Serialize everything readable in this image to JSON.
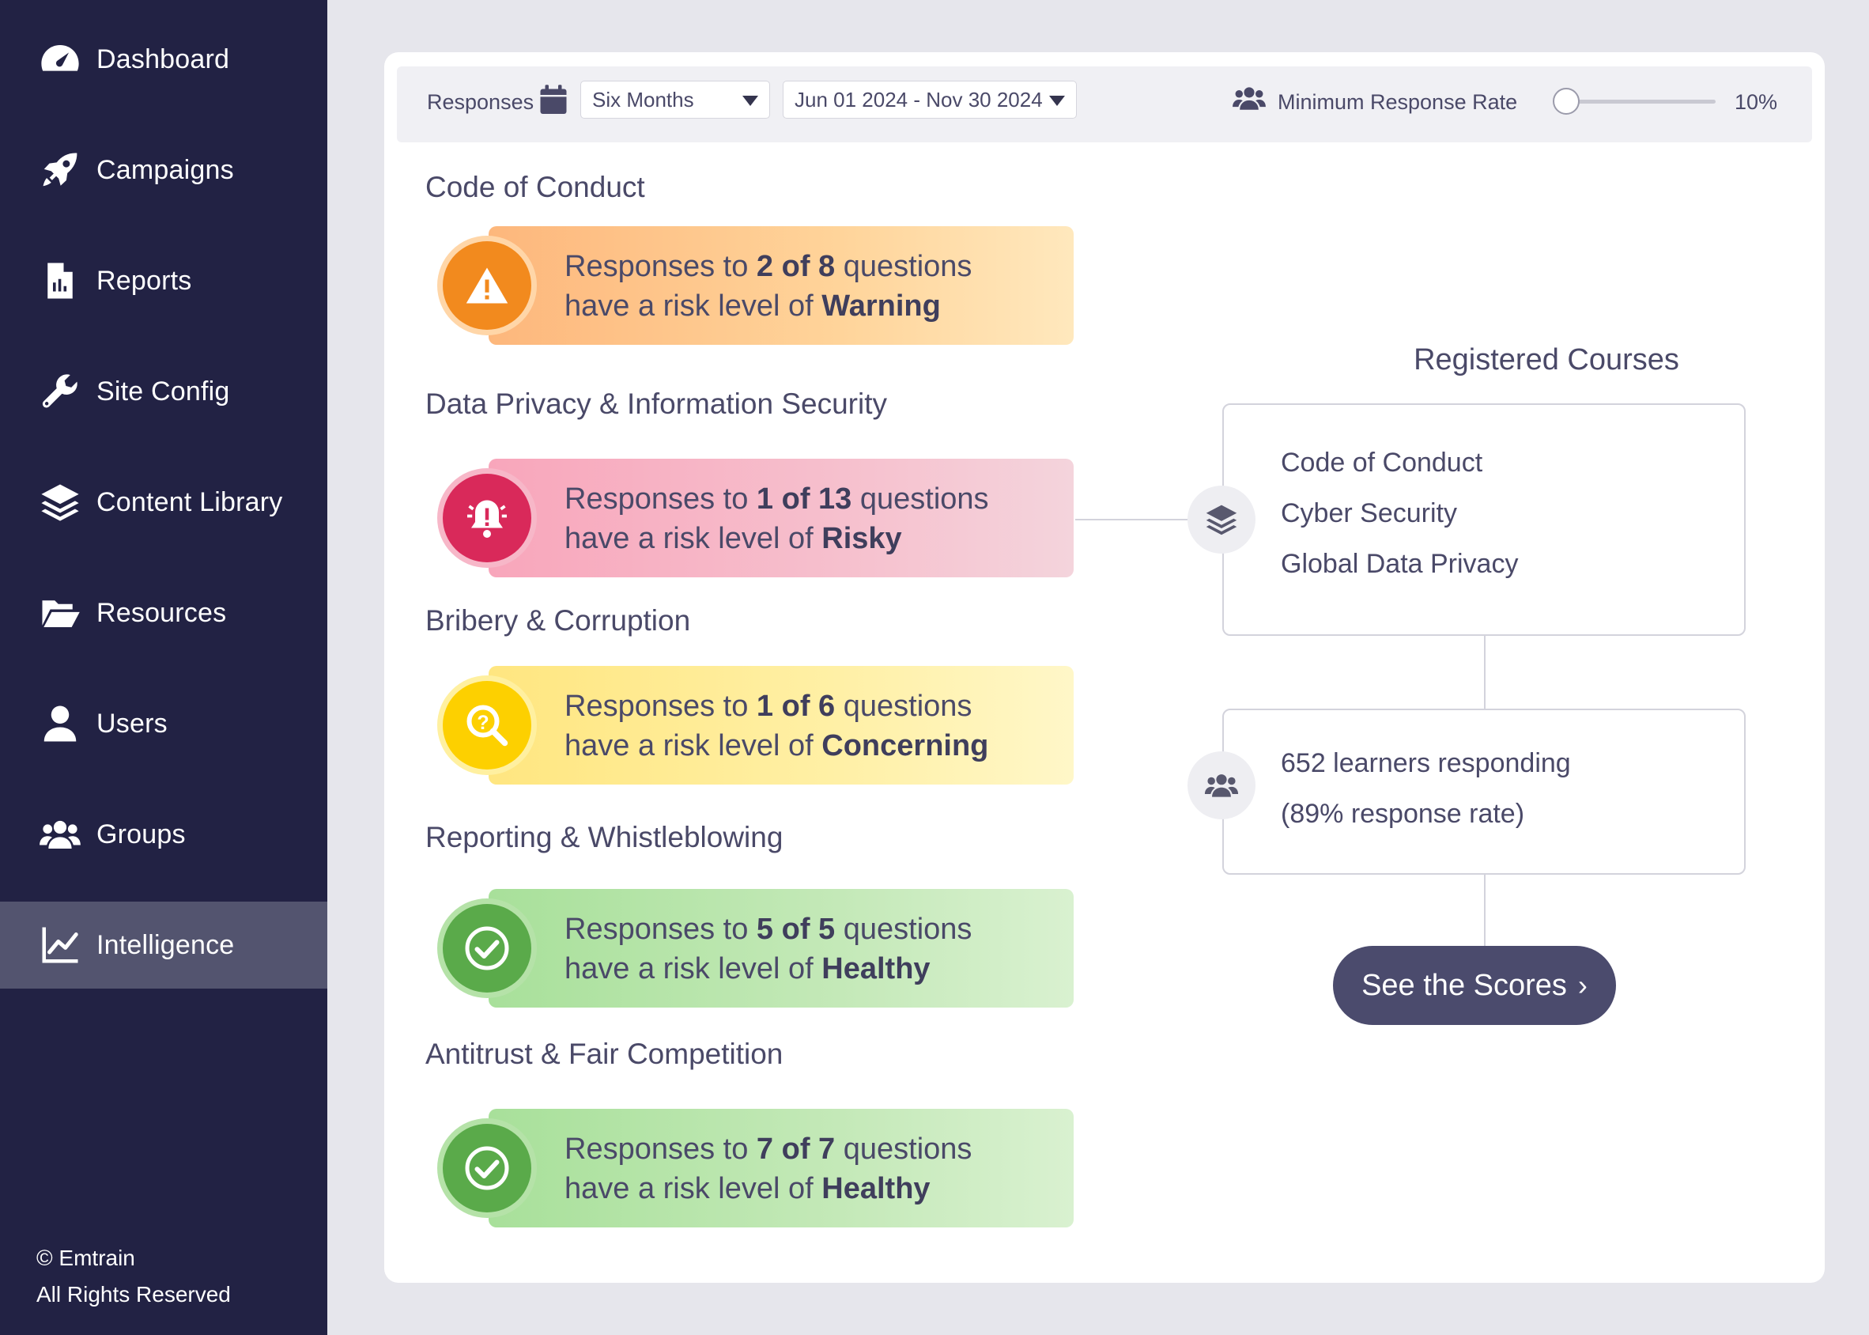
{
  "sidebar": {
    "items": [
      {
        "label": "Dashboard",
        "icon": "dashboard-gauge-icon"
      },
      {
        "label": "Campaigns",
        "icon": "rocket-icon"
      },
      {
        "label": "Reports",
        "icon": "report-file-icon"
      },
      {
        "label": "Site Config",
        "icon": "wrench-icon"
      },
      {
        "label": "Content Library",
        "icon": "layers-icon"
      },
      {
        "label": "Resources",
        "icon": "folder-open-icon"
      },
      {
        "label": "Users",
        "icon": "user-icon"
      },
      {
        "label": "Groups",
        "icon": "group-icon"
      },
      {
        "label": "Intelligence",
        "icon": "line-chart-icon",
        "active": true
      }
    ],
    "footer_line1": "© Emtrain",
    "footer_line2": "All Rights Reserved"
  },
  "toolbar": {
    "responses_label": "Responses",
    "period_select": "Six Months",
    "date_range_select": "Jun 01 2024 - Nov 30 2024",
    "min_response_label": "Minimum Response Rate",
    "min_response_value": "10%",
    "min_response_fraction": 0.1
  },
  "categories": [
    {
      "title": "Code of Conduct",
      "pre": "Responses to ",
      "count": "2 of 8",
      "mid": " questions",
      "line2": "have a risk level of ",
      "level": "Warning",
      "status": "warning",
      "color": "#f28a1e"
    },
    {
      "title": "Data Privacy & Information Security",
      "pre": "Responses to ",
      "count": "1 of 13",
      "mid": " questions",
      "line2": "have a risk level of ",
      "level": "Risky",
      "status": "risky",
      "color": "#d9295a"
    },
    {
      "title": "Bribery & Corruption",
      "pre": "Responses to ",
      "count": "1 of 6",
      "mid": " questions",
      "line2": "have a risk level of ",
      "level": "Concerning",
      "status": "concerning",
      "color": "#fdd000"
    },
    {
      "title": "Reporting & Whistleblowing",
      "pre": "Responses to ",
      "count": "5 of 5",
      "mid": " questions",
      "line2": "have a risk level of ",
      "level": "Healthy",
      "status": "healthy",
      "color": "#5aaa4a"
    },
    {
      "title": "Antitrust & Fair Competition",
      "pre": "Responses to ",
      "count": "7 of 7",
      "mid": " questions",
      "line2": "have a risk level of ",
      "level": "Healthy",
      "status": "healthy",
      "color": "#5aaa4a"
    }
  ],
  "registered": {
    "title": "Registered Courses",
    "courses": [
      "Code of Conduct",
      "Cyber Security",
      "Global Data Privacy"
    ],
    "learners_line1": "652 learners responding",
    "learners_line2": "(89% response rate)",
    "cta_label": "See the Scores",
    "cta_chevron": "›"
  }
}
